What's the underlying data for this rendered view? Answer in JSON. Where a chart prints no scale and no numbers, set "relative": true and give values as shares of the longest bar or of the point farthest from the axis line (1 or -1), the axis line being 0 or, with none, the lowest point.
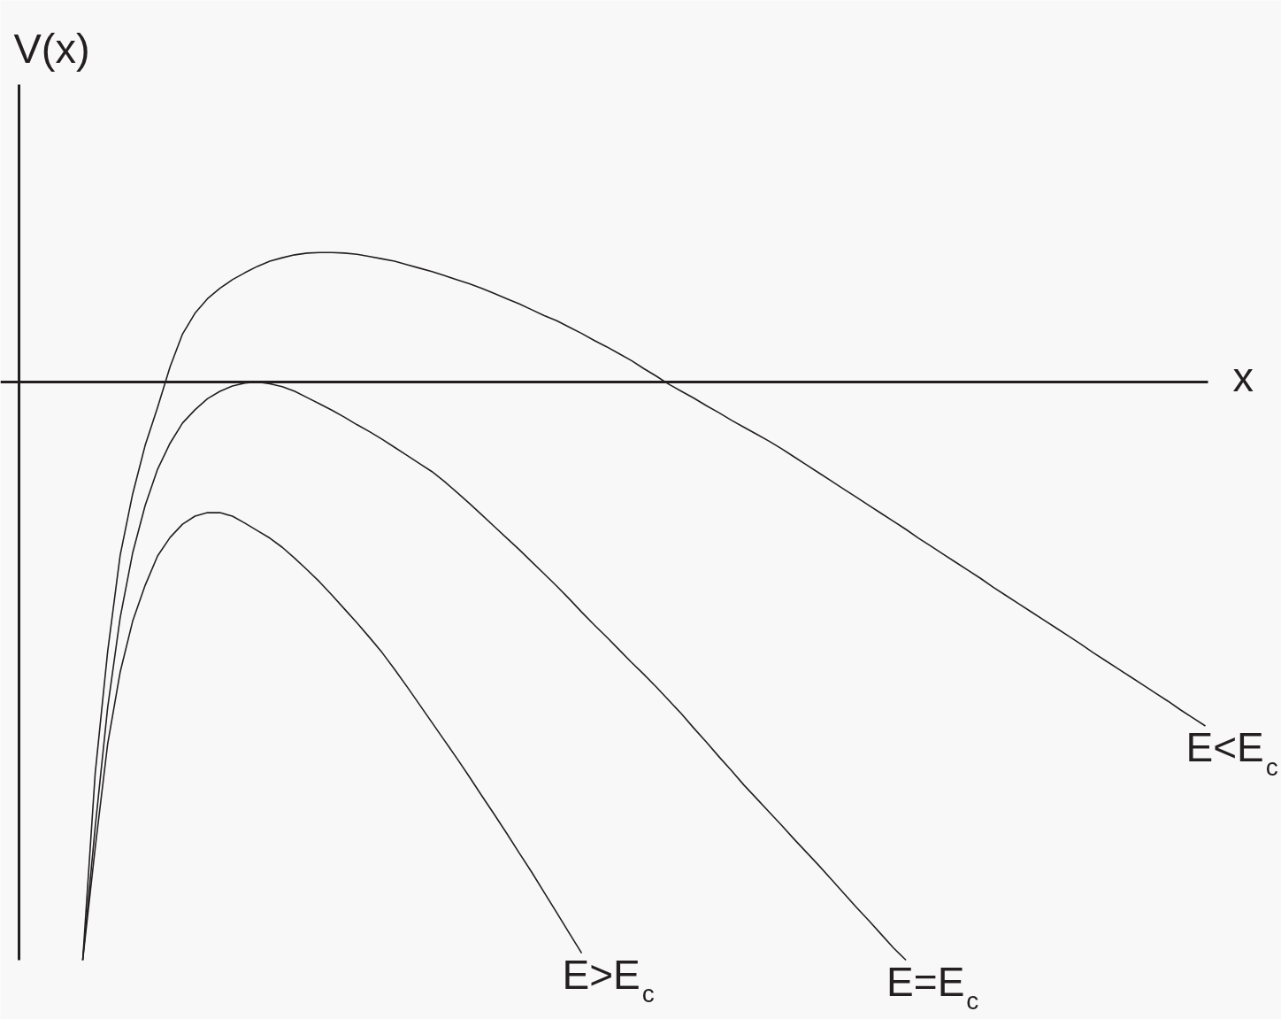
{
  "chart_data": {
    "type": "line",
    "xlabel": "x",
    "ylabel": "V(x)",
    "relative": true,
    "categories": [
      null,
      null,
      null,
      null,
      null,
      null,
      null,
      null,
      null,
      null,
      null,
      null,
      null,
      null,
      null,
      null,
      null,
      null,
      null,
      null,
      null,
      null,
      null,
      null,
      null,
      null,
      null,
      null,
      null,
      null,
      null,
      null,
      null,
      null,
      null,
      null,
      null,
      null,
      null,
      null,
      null,
      null,
      null,
      null,
      null,
      null,
      null,
      null,
      null,
      null,
      null,
      null,
      null,
      null,
      null,
      null,
      null,
      null,
      null,
      null,
      null,
      null,
      null,
      null,
      null,
      null,
      null,
      null,
      null,
      null,
      null,
      null,
      null,
      null,
      null,
      null,
      null,
      null,
      null,
      null,
      null,
      null,
      null,
      null,
      null,
      null,
      null,
      null,
      null,
      null,
      null
    ],
    "series": [
      {
        "name": "E<E$_{c}$",
        "color": "#231f20",
        "values": [
          -1,
          -0.677,
          -0.466,
          -0.3,
          -0.194,
          -0.11,
          -0.044,
          0.026,
          0.083,
          0.119,
          0.144,
          0.162,
          0.177,
          0.189,
          0.2,
          0.209,
          0.215,
          0.22,
          0.223,
          0.224,
          0.224,
          0.223,
          0.221,
          0.217,
          0.213,
          0.209,
          0.203,
          0.197,
          0.191,
          0.184,
          0.177,
          0.17,
          0.162,
          0.153,
          0.144,
          0.135,
          0.125,
          0.115,
          0.106,
          0.095,
          0.084,
          0.072,
          0.061,
          0.049,
          0.037,
          0.023,
          0.01,
          -0.004,
          -0.016,
          -0.028,
          -0.041,
          -0.053,
          -0.066,
          -0.078,
          -0.09,
          -0.102,
          -0.115,
          -0.129,
          -0.143,
          -0.157,
          -0.171,
          -0.185,
          -0.199,
          -0.213,
          -0.227,
          -0.241,
          -0.255,
          -0.27,
          -0.284,
          -0.298,
          -0.312,
          -0.326,
          -0.34,
          -0.355,
          -0.369,
          -0.383,
          -0.397,
          -0.411,
          -0.425,
          -0.439,
          -0.453,
          -0.468,
          -0.482,
          -0.496,
          -0.51,
          -0.524,
          -0.538,
          -0.552,
          -0.567,
          -0.581,
          -0.595
        ]
      },
      {
        "name": "E=E$_{c}$",
        "color": "#231f20",
        "values": [
          -1,
          -0.77,
          -0.563,
          -0.408,
          -0.296,
          -0.214,
          -0.151,
          -0.106,
          -0.071,
          -0.048,
          -0.029,
          -0.016,
          -0.007,
          -0.002,
          0,
          -0.003,
          -0.008,
          -0.016,
          -0.027,
          -0.038,
          -0.049,
          -0.061,
          -0.074,
          -0.086,
          -0.099,
          -0.113,
          -0.127,
          -0.141,
          -0.155,
          -0.172,
          -0.191,
          -0.21,
          -0.23,
          -0.25,
          -0.27,
          -0.29,
          -0.311,
          -0.332,
          -0.353,
          -0.375,
          -0.398,
          -0.42,
          -0.441,
          -0.463,
          -0.485,
          -0.506,
          -0.528,
          -0.551,
          -0.574,
          -0.599,
          -0.623,
          -0.648,
          -0.672,
          -0.697,
          -0.72,
          -0.743,
          -0.766,
          -0.79,
          -0.813,
          -0.836,
          -0.86,
          -0.884,
          -0.908,
          -0.931,
          -0.955,
          -0.979,
          -1,
          null,
          null,
          null,
          null,
          null,
          null,
          null,
          null,
          null,
          null,
          null,
          null,
          null,
          null,
          null,
          null,
          null,
          null,
          null,
          null,
          null,
          null,
          null,
          null
        ]
      },
      {
        "name": "E>E$_{c}$",
        "color": "#231f20",
        "values": [
          -1,
          -0.806,
          -0.626,
          -0.502,
          -0.414,
          -0.352,
          -0.301,
          -0.269,
          -0.246,
          -0.232,
          -0.226,
          -0.226,
          -0.232,
          -0.244,
          -0.257,
          -0.27,
          -0.286,
          -0.305,
          -0.325,
          -0.346,
          -0.369,
          -0.393,
          -0.417,
          -0.442,
          -0.468,
          -0.497,
          -0.527,
          -0.558,
          -0.589,
          -0.62,
          -0.651,
          -0.683,
          -0.716,
          -0.748,
          -0.781,
          -0.815,
          -0.848,
          -0.883,
          -0.918,
          -0.953,
          -0.988,
          null,
          null,
          null,
          null,
          null,
          null,
          null,
          null,
          null,
          null,
          null,
          null,
          null,
          null,
          null,
          null,
          null,
          null,
          null,
          null,
          null,
          null,
          null,
          null,
          null,
          null,
          null,
          null,
          null,
          null,
          null,
          null,
          null,
          null,
          null,
          null,
          null,
          null,
          null,
          null,
          null,
          null,
          null,
          null,
          null,
          null,
          null,
          null,
          null,
          null
        ]
      }
    ]
  }
}
